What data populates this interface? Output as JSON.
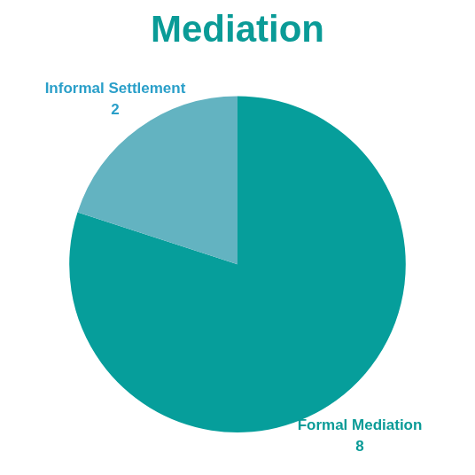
{
  "chart_data": {
    "type": "pie",
    "title": "Mediation",
    "categories": [
      "Formal Mediation",
      "Informal Settlement"
    ],
    "values": [
      8,
      2
    ],
    "colors": [
      "#069e9b",
      "#63b3c1"
    ],
    "data_labels": true,
    "legend": false
  }
}
